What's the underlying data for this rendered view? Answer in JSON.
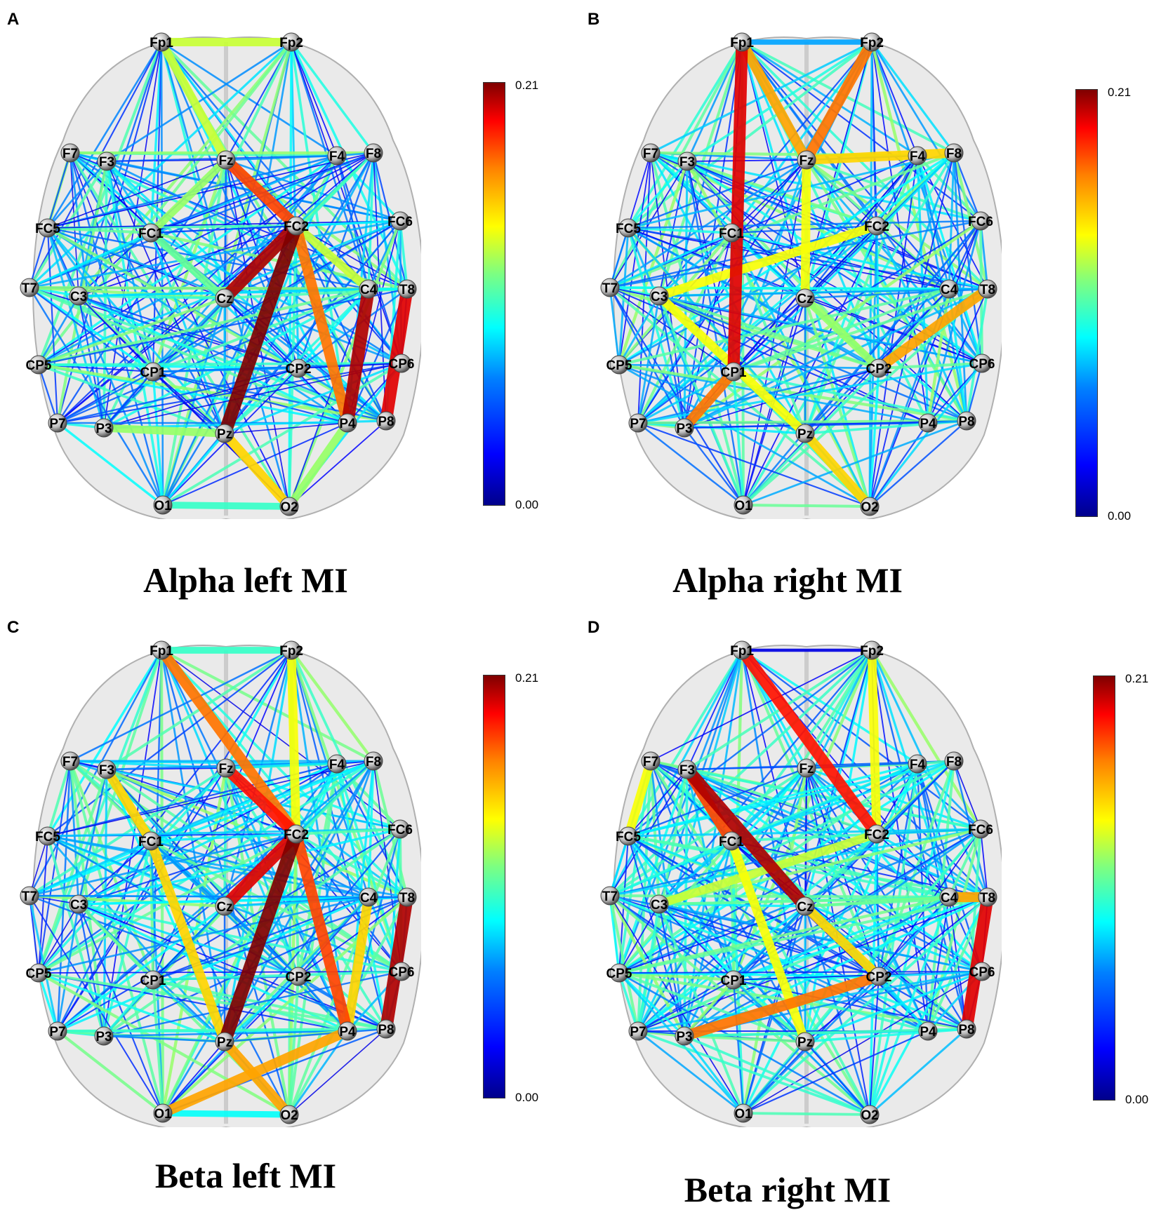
{
  "colors": {
    "colormap": [
      "#00008b",
      "#0000ff",
      "#0080ff",
      "#00ffff",
      "#7fff7f",
      "#ffff00",
      "#ff8000",
      "#ff0000",
      "#7f0000"
    ],
    "brain_fill": "#d9d9d9",
    "node_fill": "#bdbdbd"
  },
  "panels": [
    {
      "letter": "A",
      "title": "Alpha left MI",
      "colorbar": {
        "max_label": "0.21",
        "min_label": "0.00"
      },
      "electrodes": [
        "Fp1",
        "Fp2",
        "F7",
        "F3",
        "Fz",
        "F4",
        "F8",
        "FC5",
        "FC1",
        "FC2",
        "FC6",
        "T7",
        "C3",
        "Cz",
        "C4",
        "T8",
        "CP5",
        "CP1",
        "CP2",
        "CP6",
        "P7",
        "P3",
        "Pz",
        "P4",
        "P8",
        "O1",
        "O2"
      ],
      "strong_edges": [
        {
          "a": "FC2",
          "b": "Pz",
          "w": 0.21
        },
        {
          "a": "FC2",
          "b": "Cz",
          "w": 0.2
        },
        {
          "a": "Fz",
          "b": "FC2",
          "w": 0.17
        },
        {
          "a": "FC2",
          "b": "P4",
          "w": 0.16
        },
        {
          "a": "C4",
          "b": "P4",
          "w": 0.2
        },
        {
          "a": "T8",
          "b": "P8",
          "w": 0.19
        },
        {
          "a": "Fp1",
          "b": "Fp2",
          "w": 0.12
        },
        {
          "a": "Fp1",
          "b": "Fz",
          "w": 0.12
        },
        {
          "a": "Fz",
          "b": "FC1",
          "w": 0.11
        },
        {
          "a": "FC2",
          "b": "C4",
          "w": 0.12
        },
        {
          "a": "FC1",
          "b": "Cz",
          "w": 0.1
        },
        {
          "a": "O1",
          "b": "O2",
          "w": 0.09
        },
        {
          "a": "P4",
          "b": "O2",
          "w": 0.11
        },
        {
          "a": "Pz",
          "b": "O2",
          "w": 0.14
        },
        {
          "a": "P3",
          "b": "Pz",
          "w": 0.11
        }
      ]
    },
    {
      "letter": "B",
      "title": "Alpha right MI",
      "colorbar": {
        "max_label": "0.21",
        "min_label": "0.00"
      },
      "electrodes": [
        "Fp1",
        "Fp2",
        "F7",
        "F3",
        "Fz",
        "F4",
        "F8",
        "FC5",
        "FC1",
        "FC2",
        "FC6",
        "T7",
        "C3",
        "Cz",
        "C4",
        "T8",
        "CP5",
        "CP1",
        "CP2",
        "CP6",
        "P7",
        "P3",
        "Pz",
        "P4",
        "P8",
        "O1",
        "O2"
      ],
      "strong_edges": [
        {
          "a": "Fp1",
          "b": "CP1",
          "w": 0.19
        },
        {
          "a": "Fp2",
          "b": "Fz",
          "w": 0.16
        },
        {
          "a": "Fp1",
          "b": "Fz",
          "w": 0.15
        },
        {
          "a": "Fz",
          "b": "F8",
          "w": 0.14
        },
        {
          "a": "C3",
          "b": "FC2",
          "w": 0.13
        },
        {
          "a": "Fz",
          "b": "Cz",
          "w": 0.13
        },
        {
          "a": "C3",
          "b": "Pz",
          "w": 0.13
        },
        {
          "a": "Pz",
          "b": "O2",
          "w": 0.14
        },
        {
          "a": "CP2",
          "b": "T8",
          "w": 0.15
        },
        {
          "a": "P3",
          "b": "CP1",
          "w": 0.16
        },
        {
          "a": "Fp1",
          "b": "Fp2",
          "w": 0.06
        },
        {
          "a": "Cz",
          "b": "CP2",
          "w": 0.11
        }
      ]
    },
    {
      "letter": "C",
      "title": "Beta left MI",
      "colorbar": {
        "max_label": "0.21",
        "min_label": "0.00"
      },
      "electrodes": [
        "Fp1",
        "Fp2",
        "F7",
        "F3",
        "Fz",
        "F4",
        "F8",
        "FC5",
        "FC1",
        "FC2",
        "FC6",
        "T7",
        "C3",
        "Cz",
        "C4",
        "T8",
        "CP5",
        "CP1",
        "CP2",
        "CP6",
        "P7",
        "P3",
        "Pz",
        "P4",
        "P8",
        "O1",
        "O2"
      ],
      "strong_edges": [
        {
          "a": "FC2",
          "b": "Pz",
          "w": 0.21
        },
        {
          "a": "FC2",
          "b": "Cz",
          "w": 0.19
        },
        {
          "a": "Fz",
          "b": "FC2",
          "w": 0.18
        },
        {
          "a": "FC2",
          "b": "P4",
          "w": 0.17
        },
        {
          "a": "Fp1",
          "b": "FC2",
          "w": 0.16
        },
        {
          "a": "T8",
          "b": "P8",
          "w": 0.2
        },
        {
          "a": "F3",
          "b": "FC1",
          "w": 0.14
        },
        {
          "a": "Fp2",
          "b": "FC2",
          "w": 0.13
        },
        {
          "a": "C4",
          "b": "P4",
          "w": 0.14
        },
        {
          "a": "Fp1",
          "b": "Fp2",
          "w": 0.09
        },
        {
          "a": "O1",
          "b": "O2",
          "w": 0.08
        },
        {
          "a": "P4",
          "b": "O1",
          "w": 0.15
        },
        {
          "a": "Pz",
          "b": "O2",
          "w": 0.15
        },
        {
          "a": "FC1",
          "b": "Pz",
          "w": 0.14
        }
      ]
    },
    {
      "letter": "D",
      "title": "Beta right MI",
      "colorbar": {
        "max_label": "0.21",
        "min_label": "0.00"
      },
      "electrodes": [
        "Fp1",
        "Fp2",
        "F7",
        "F3",
        "Fz",
        "F4",
        "F8",
        "FC5",
        "FC1",
        "FC2",
        "FC6",
        "T7",
        "C3",
        "Cz",
        "C4",
        "T8",
        "CP5",
        "CP1",
        "CP2",
        "CP6",
        "P7",
        "P3",
        "Pz",
        "P4",
        "P8",
        "O1",
        "O2"
      ],
      "strong_edges": [
        {
          "a": "F3",
          "b": "Cz",
          "w": 0.2
        },
        {
          "a": "Fp1",
          "b": "FC2",
          "w": 0.18
        },
        {
          "a": "F3",
          "b": "FC1",
          "w": 0.17
        },
        {
          "a": "Fp2",
          "b": "FC2",
          "w": 0.13
        },
        {
          "a": "F7",
          "b": "FC5",
          "w": 0.13
        },
        {
          "a": "T8",
          "b": "P8",
          "w": 0.19
        },
        {
          "a": "Cz",
          "b": "CP2",
          "w": 0.14
        },
        {
          "a": "C3",
          "b": "FC2",
          "w": 0.12
        },
        {
          "a": "P3",
          "b": "CP2",
          "w": 0.16
        },
        {
          "a": "FC1",
          "b": "Pz",
          "w": 0.13
        },
        {
          "a": "Fp1",
          "b": "Fp2",
          "w": 0.02
        },
        {
          "a": "C4",
          "b": "T8",
          "w": 0.15
        }
      ]
    }
  ]
}
